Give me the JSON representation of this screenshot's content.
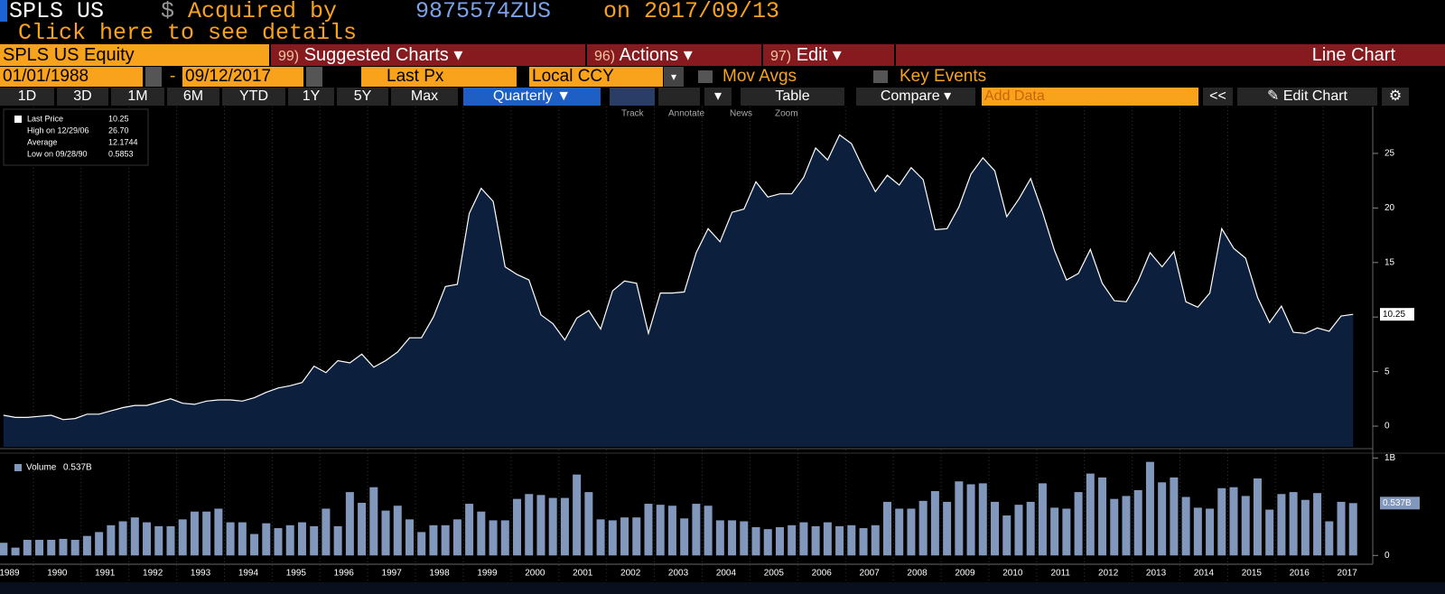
{
  "header": {
    "ticker": "SPLS US",
    "currency": "$",
    "status": "Acquired by",
    "acquirer": "9875574ZUS",
    "date": "on 2017/09/13",
    "link": "Click here to see details"
  },
  "menu": {
    "security": "SPLS US Equity",
    "items": [
      {
        "num": "99)",
        "label": "Suggested Charts"
      },
      {
        "num": "96)",
        "label": "Actions"
      },
      {
        "num": "97)",
        "label": "Edit"
      }
    ],
    "view": "Line Chart"
  },
  "fields": {
    "start_date": "01/01/1988",
    "separator": "-",
    "end_date": "09/12/2017",
    "field": "Last Px",
    "currency_mode": "Local CCY",
    "options": [
      "Mov Avgs",
      "Key Events"
    ]
  },
  "controls": {
    "periods": [
      "1D",
      "3D",
      "1M",
      "6M",
      "YTD",
      "1Y",
      "5Y",
      "Max"
    ],
    "frequency": "Quarterly",
    "table": "Table",
    "compare": "Compare",
    "add_data": "Add Data",
    "collapse": "<<",
    "edit_chart": "Edit Chart"
  },
  "tools": [
    "Track",
    "Annotate",
    "News",
    "Zoom"
  ],
  "years": [
    "1989",
    "1990",
    "1991",
    "1992",
    "1993",
    "1994",
    "1995",
    "1996",
    "1997",
    "1998",
    "1999",
    "2000",
    "2001",
    "2002",
    "2003",
    "2004",
    "2005",
    "2006",
    "2007",
    "2008",
    "2009",
    "2010",
    "2011",
    "2012",
    "2013",
    "2014",
    "2015",
    "2016",
    "2017"
  ],
  "chart_data": [
    {
      "type": "area",
      "legend": [
        {
          "label": "Last Price",
          "value": "10.25"
        },
        {
          "label": "High on 12/29/06",
          "value": "26.70"
        },
        {
          "label": "Average",
          "value": "12.1744"
        },
        {
          "label": "Low on 09/28/90",
          "value": "0.5853"
        }
      ],
      "ylim": [
        -1.9,
        29.3
      ],
      "yticks": [
        0,
        5,
        10,
        15,
        20,
        25
      ],
      "series": [
        {
          "name": "Last Price",
          "color": "#ffffff",
          "fill": "#0c1f3d",
          "values": [
            1.0,
            0.8,
            0.8,
            0.9,
            1.0,
            0.6,
            0.7,
            1.1,
            1.1,
            1.4,
            1.7,
            1.9,
            1.9,
            2.2,
            2.5,
            2.1,
            2.0,
            2.3,
            2.4,
            2.4,
            2.3,
            2.6,
            3.1,
            3.5,
            3.7,
            4.0,
            5.5,
            4.9,
            6.0,
            5.8,
            6.6,
            5.4,
            6.0,
            6.8,
            8.1,
            8.1,
            10.0,
            12.8,
            13.0,
            19.5,
            21.8,
            20.6,
            14.6,
            13.9,
            13.4,
            10.2,
            9.4,
            7.9,
            9.9,
            10.6,
            8.9,
            12.4,
            13.3,
            13.1,
            8.5,
            12.2,
            12.2,
            12.3,
            15.9,
            18.1,
            16.9,
            19.6,
            19.9,
            22.4,
            21.0,
            21.3,
            21.3,
            22.8,
            25.5,
            24.4,
            26.7,
            25.9,
            23.6,
            21.5,
            23.0,
            22.1,
            23.7,
            22.6,
            18.0,
            18.1,
            20.1,
            23.1,
            24.6,
            23.4,
            19.2,
            20.8,
            22.7,
            19.6,
            16.1,
            13.4,
            14.0,
            16.2,
            13.1,
            11.5,
            11.4,
            13.3,
            15.9,
            14.6,
            16.0,
            11.4,
            10.9,
            12.2,
            18.1,
            16.3,
            15.4,
            11.8,
            9.5,
            11.0,
            8.6,
            8.5,
            9.0,
            8.7,
            10.1,
            10.25
          ]
        }
      ]
    },
    {
      "type": "bar",
      "legend": [
        {
          "label": "Volume",
          "value": "0.537B"
        }
      ],
      "ylim": [
        -0.09,
        1.04
      ],
      "yticks": [
        0,
        {
          "value": 1,
          "label": "1B"
        }
      ],
      "series": [
        {
          "name": "Volume",
          "color": "#8197bb",
          "values": [
            0.13,
            0.08,
            0.16,
            0.16,
            0.16,
            0.17,
            0.16,
            0.2,
            0.24,
            0.31,
            0.35,
            0.39,
            0.34,
            0.3,
            0.3,
            0.37,
            0.45,
            0.45,
            0.48,
            0.34,
            0.34,
            0.22,
            0.33,
            0.28,
            0.31,
            0.34,
            0.3,
            0.48,
            0.3,
            0.65,
            0.54,
            0.7,
            0.46,
            0.51,
            0.37,
            0.24,
            0.31,
            0.31,
            0.37,
            0.53,
            0.45,
            0.36,
            0.36,
            0.58,
            0.63,
            0.62,
            0.59,
            0.59,
            0.83,
            0.65,
            0.37,
            0.36,
            0.39,
            0.39,
            0.53,
            0.52,
            0.51,
            0.38,
            0.53,
            0.51,
            0.36,
            0.36,
            0.35,
            0.29,
            0.27,
            0.29,
            0.31,
            0.34,
            0.3,
            0.34,
            0.3,
            0.31,
            0.28,
            0.31,
            0.55,
            0.48,
            0.48,
            0.56,
            0.66,
            0.55,
            0.76,
            0.73,
            0.74,
            0.55,
            0.41,
            0.52,
            0.55,
            0.74,
            0.49,
            0.48,
            0.65,
            0.84,
            0.8,
            0.58,
            0.61,
            0.67,
            0.96,
            0.75,
            0.8,
            0.6,
            0.49,
            0.48,
            0.69,
            0.7,
            0.61,
            0.79,
            0.47,
            0.63,
            0.65,
            0.57,
            0.64,
            0.35,
            0.55,
            0.537
          ]
        }
      ]
    }
  ]
}
